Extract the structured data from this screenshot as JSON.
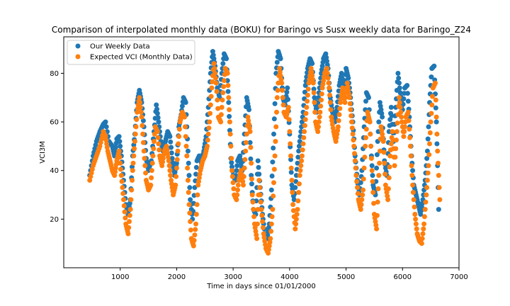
{
  "chart_data": {
    "type": "scatter",
    "title": "Comparison of interpolated monthly data (BOKU) for Baringo vs Susx weekly data for Baringo_Z24",
    "xlabel": "Time in days since 01/01/2000",
    "ylabel": "VCI3M",
    "xlim": [
      0,
      7000
    ],
    "ylim": [
      0,
      95
    ],
    "xticks": [
      1000,
      2000,
      3000,
      4000,
      5000,
      6000,
      7000
    ],
    "yticks": [
      20,
      40,
      60,
      80
    ],
    "grid": false,
    "legend_position": "top-left",
    "series": [
      {
        "name": "Our Weekly Data",
        "color": "#1f77b4",
        "points": [
          [
            460,
            38
          ],
          [
            520,
            46
          ],
          [
            580,
            52
          ],
          [
            640,
            56
          ],
          [
            700,
            59
          ],
          [
            740,
            60
          ],
          [
            800,
            52
          ],
          [
            860,
            50
          ],
          [
            900,
            46
          ],
          [
            940,
            53
          ],
          [
            980,
            54
          ],
          [
            1020,
            46
          ],
          [
            1060,
            36
          ],
          [
            1100,
            26
          ],
          [
            1140,
            22
          ],
          [
            1180,
            28
          ],
          [
            1220,
            46
          ],
          [
            1260,
            55
          ],
          [
            1300,
            68
          ],
          [
            1340,
            73
          ],
          [
            1380,
            68
          ],
          [
            1420,
            58
          ],
          [
            1460,
            45
          ],
          [
            1500,
            40
          ],
          [
            1550,
            44
          ],
          [
            1600,
            56
          ],
          [
            1640,
            67
          ],
          [
            1680,
            60
          ],
          [
            1720,
            52
          ],
          [
            1760,
            48
          ],
          [
            1800,
            52
          ],
          [
            1840,
            56
          ],
          [
            1880,
            54
          ],
          [
            1920,
            45
          ],
          [
            1960,
            38
          ],
          [
            2000,
            43
          ],
          [
            2040,
            58
          ],
          [
            2080,
            63
          ],
          [
            2120,
            70
          ],
          [
            2160,
            68
          ],
          [
            2200,
            48
          ],
          [
            2240,
            28
          ],
          [
            2280,
            20
          ],
          [
            2320,
            33
          ],
          [
            2360,
            44
          ],
          [
            2400,
            46
          ],
          [
            2440,
            43
          ],
          [
            2480,
            48
          ],
          [
            2520,
            54
          ],
          [
            2560,
            66
          ],
          [
            2600,
            80
          ],
          [
            2640,
            89
          ],
          [
            2680,
            83
          ],
          [
            2720,
            74
          ],
          [
            2760,
            70
          ],
          [
            2800,
            80
          ],
          [
            2840,
            88
          ],
          [
            2880,
            86
          ],
          [
            2920,
            68
          ],
          [
            2960,
            45
          ],
          [
            3000,
            38
          ],
          [
            3040,
            36
          ],
          [
            3080,
            44
          ],
          [
            3120,
            46
          ],
          [
            3160,
            40
          ],
          [
            3200,
            55
          ],
          [
            3240,
            70
          ],
          [
            3280,
            65
          ],
          [
            3320,
            38
          ],
          [
            3360,
            24
          ],
          [
            3400,
            22
          ],
          [
            3440,
            44
          ],
          [
            3480,
            33
          ],
          [
            3520,
            22
          ],
          [
            3560,
            14
          ],
          [
            3600,
            12
          ],
          [
            3640,
            18
          ],
          [
            3680,
            32
          ],
          [
            3720,
            55
          ],
          [
            3760,
            80
          ],
          [
            3800,
            89
          ],
          [
            3840,
            86
          ],
          [
            3880,
            70
          ],
          [
            3920,
            67
          ],
          [
            3960,
            74
          ],
          [
            4000,
            55
          ],
          [
            4040,
            34
          ],
          [
            4080,
            28
          ],
          [
            4120,
            38
          ],
          [
            4160,
            48
          ],
          [
            4200,
            56
          ],
          [
            4240,
            64
          ],
          [
            4280,
            75
          ],
          [
            4320,
            82
          ],
          [
            4360,
            86
          ],
          [
            4400,
            84
          ],
          [
            4440,
            70
          ],
          [
            4480,
            64
          ],
          [
            4520,
            72
          ],
          [
            4560,
            80
          ],
          [
            4600,
            86
          ],
          [
            4640,
            88
          ],
          [
            4680,
            82
          ],
          [
            4720,
            70
          ],
          [
            4760,
            64
          ],
          [
            4800,
            60
          ],
          [
            4840,
            66
          ],
          [
            4880,
            75
          ],
          [
            4920,
            80
          ],
          [
            4960,
            72
          ],
          [
            5000,
            82
          ],
          [
            5040,
            78
          ],
          [
            5080,
            70
          ],
          [
            5120,
            60
          ],
          [
            5160,
            46
          ],
          [
            5200,
            36
          ],
          [
            5240,
            30
          ],
          [
            5280,
            40
          ],
          [
            5320,
            58
          ],
          [
            5360,
            72
          ],
          [
            5400,
            70
          ],
          [
            5440,
            50
          ],
          [
            5480,
            34
          ],
          [
            5520,
            30
          ],
          [
            5560,
            52
          ],
          [
            5600,
            68
          ],
          [
            5640,
            62
          ],
          [
            5680,
            44
          ],
          [
            5720,
            38
          ],
          [
            5760,
            56
          ],
          [
            5800,
            66
          ],
          [
            5840,
            52
          ],
          [
            5880,
            66
          ],
          [
            5920,
            80
          ],
          [
            5960,
            72
          ],
          [
            6000,
            65
          ],
          [
            6040,
            74
          ],
          [
            6080,
            75
          ],
          [
            6120,
            62
          ],
          [
            6160,
            46
          ],
          [
            6200,
            34
          ],
          [
            6240,
            30
          ],
          [
            6280,
            26
          ],
          [
            6320,
            22
          ],
          [
            6360,
            28
          ],
          [
            6400,
            36
          ],
          [
            6440,
            48
          ],
          [
            6480,
            68
          ],
          [
            6520,
            82
          ],
          [
            6560,
            83
          ],
          [
            6600,
            60
          ],
          [
            6640,
            24
          ]
        ]
      },
      {
        "name": "Expected VCI (Monthly Data)",
        "color": "#ff7f0e",
        "points": [
          [
            460,
            36
          ],
          [
            520,
            42
          ],
          [
            580,
            46
          ],
          [
            640,
            50
          ],
          [
            700,
            56
          ],
          [
            740,
            54
          ],
          [
            780,
            48
          ],
          [
            820,
            44
          ],
          [
            860,
            40
          ],
          [
            900,
            38
          ],
          [
            940,
            44
          ],
          [
            980,
            48
          ],
          [
            1020,
            38
          ],
          [
            1060,
            28
          ],
          [
            1100,
            18
          ],
          [
            1140,
            14
          ],
          [
            1180,
            24
          ],
          [
            1220,
            40
          ],
          [
            1260,
            52
          ],
          [
            1300,
            64
          ],
          [
            1340,
            70
          ],
          [
            1380,
            62
          ],
          [
            1420,
            48
          ],
          [
            1460,
            36
          ],
          [
            1500,
            32
          ],
          [
            1540,
            34
          ],
          [
            1580,
            46
          ],
          [
            1620,
            58
          ],
          [
            1660,
            56
          ],
          [
            1700,
            46
          ],
          [
            1740,
            42
          ],
          [
            1780,
            48
          ],
          [
            1820,
            50
          ],
          [
            1860,
            44
          ],
          [
            1900,
            36
          ],
          [
            1940,
            30
          ],
          [
            1980,
            34
          ],
          [
            2020,
            48
          ],
          [
            2060,
            60
          ],
          [
            2100,
            64
          ],
          [
            2140,
            62
          ],
          [
            2180,
            46
          ],
          [
            2220,
            26
          ],
          [
            2260,
            12
          ],
          [
            2300,
            9
          ],
          [
            2340,
            18
          ],
          [
            2380,
            34
          ],
          [
            2420,
            40
          ],
          [
            2460,
            44
          ],
          [
            2500,
            46
          ],
          [
            2540,
            50
          ],
          [
            2580,
            60
          ],
          [
            2620,
            74
          ],
          [
            2660,
            84
          ],
          [
            2700,
            76
          ],
          [
            2740,
            62
          ],
          [
            2780,
            60
          ],
          [
            2820,
            72
          ],
          [
            2860,
            82
          ],
          [
            2900,
            80
          ],
          [
            2940,
            60
          ],
          [
            2980,
            40
          ],
          [
            3020,
            30
          ],
          [
            3060,
            28
          ],
          [
            3100,
            36
          ],
          [
            3140,
            40
          ],
          [
            3180,
            34
          ],
          [
            3220,
            48
          ],
          [
            3260,
            62
          ],
          [
            3300,
            56
          ],
          [
            3340,
            30
          ],
          [
            3380,
            18
          ],
          [
            3420,
            12
          ],
          [
            3460,
            36
          ],
          [
            3500,
            24
          ],
          [
            3540,
            14
          ],
          [
            3580,
            8
          ],
          [
            3620,
            6
          ],
          [
            3660,
            12
          ],
          [
            3700,
            24
          ],
          [
            3740,
            46
          ],
          [
            3780,
            70
          ],
          [
            3820,
            82
          ],
          [
            3860,
            76
          ],
          [
            3900,
            64
          ],
          [
            3940,
            62
          ],
          [
            3980,
            66
          ],
          [
            4020,
            46
          ],
          [
            4060,
            26
          ],
          [
            4100,
            16
          ],
          [
            4140,
            24
          ],
          [
            4180,
            38
          ],
          [
            4220,
            46
          ],
          [
            4260,
            56
          ],
          [
            4300,
            66
          ],
          [
            4340,
            76
          ],
          [
            4380,
            82
          ],
          [
            4420,
            76
          ],
          [
            4460,
            60
          ],
          [
            4500,
            56
          ],
          [
            4540,
            64
          ],
          [
            4580,
            74
          ],
          [
            4620,
            80
          ],
          [
            4660,
            82
          ],
          [
            4700,
            74
          ],
          [
            4740,
            62
          ],
          [
            4780,
            56
          ],
          [
            4820,
            52
          ],
          [
            4860,
            58
          ],
          [
            4900,
            68
          ],
          [
            4940,
            74
          ],
          [
            4980,
            68
          ],
          [
            5020,
            76
          ],
          [
            5060,
            70
          ],
          [
            5100,
            60
          ],
          [
            5140,
            50
          ],
          [
            5180,
            38
          ],
          [
            5220,
            28
          ],
          [
            5260,
            24
          ],
          [
            5300,
            32
          ],
          [
            5340,
            50
          ],
          [
            5380,
            64
          ],
          [
            5420,
            60
          ],
          [
            5460,
            40
          ],
          [
            5500,
            22
          ],
          [
            5540,
            16
          ],
          [
            5580,
            38
          ],
          [
            5620,
            58
          ],
          [
            5660,
            52
          ],
          [
            5700,
            34
          ],
          [
            5740,
            28
          ],
          [
            5780,
            46
          ],
          [
            5820,
            56
          ],
          [
            5860,
            42
          ],
          [
            5900,
            56
          ],
          [
            5940,
            70
          ],
          [
            5980,
            62
          ],
          [
            6020,
            54
          ],
          [
            6060,
            62
          ],
          [
            6100,
            64
          ],
          [
            6140,
            50
          ],
          [
            6180,
            34
          ],
          [
            6220,
            22
          ],
          [
            6260,
            14
          ],
          [
            6300,
            11
          ],
          [
            6340,
            10
          ],
          [
            6380,
            18
          ],
          [
            6420,
            30
          ],
          [
            6460,
            42
          ],
          [
            6500,
            60
          ],
          [
            6540,
            74
          ],
          [
            6580,
            76
          ],
          [
            6620,
            48
          ],
          [
            6660,
            28
          ]
        ]
      }
    ]
  }
}
